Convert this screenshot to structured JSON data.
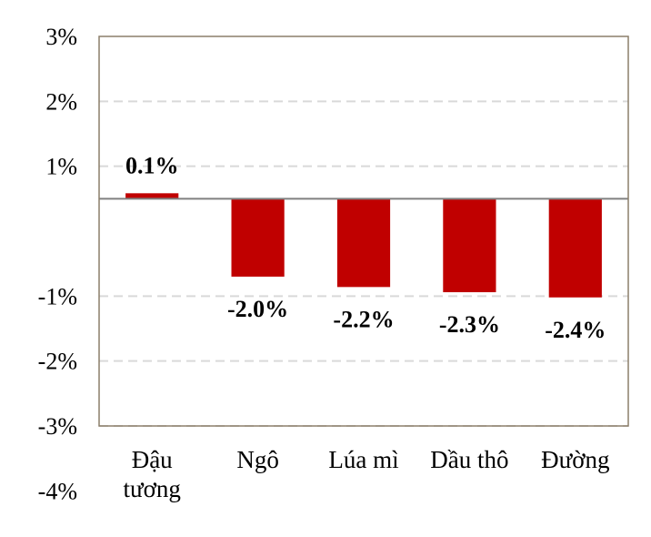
{
  "chart_data": {
    "type": "bar",
    "categories": [
      [
        "Đậu",
        "tương"
      ],
      [
        "Ngô"
      ],
      [
        "Lúa mì"
      ],
      [
        "Dầu thô"
      ],
      [
        "Đường"
      ]
    ],
    "values": [
      0.1,
      -2.0,
      -2.2,
      -2.3,
      -2.4
    ],
    "value_labels": [
      "0.1%",
      "-2.0%",
      "-2.2%",
      "-2.3%",
      "-2.4%"
    ],
    "y_ticks": [
      {
        "label": "3%",
        "pos": 3
      },
      {
        "label": "2%",
        "pos": 2
      },
      {
        "label": "1%",
        "pos": 1
      },
      {
        "label": "-1%",
        "pos": -1
      },
      {
        "label": "-2%",
        "pos": -2
      },
      {
        "label": "-3%",
        "pos": -3
      },
      {
        "label": "-4%",
        "pos": -4
      }
    ],
    "ylim": [
      -4,
      3
    ],
    "grid": true,
    "bar_color": "#c00000",
    "title": "",
    "xlabel": "",
    "ylabel": ""
  }
}
